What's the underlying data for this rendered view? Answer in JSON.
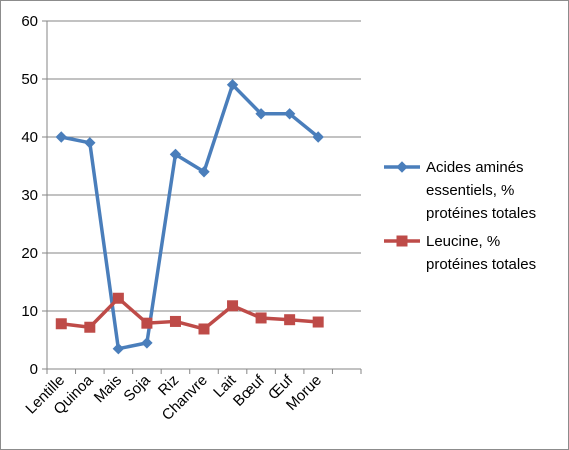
{
  "chart_data": {
    "type": "line",
    "title": "",
    "xlabel": "",
    "ylabel": "",
    "categories": [
      "Lentille",
      "Quinoa",
      "Mais",
      "Soja",
      "Riz",
      "Chanvre",
      "Lait",
      "Bœuf",
      "Œuf",
      "Morue"
    ],
    "ylim": [
      0,
      60
    ],
    "yticks": [
      0,
      10,
      20,
      30,
      40,
      50,
      60
    ],
    "grid": "horizontal",
    "legend_position": "right",
    "series": [
      {
        "name": "Acides aminés essentiels, % protéines totales",
        "legend_lines": [
          "Acides aminés",
          "essentiels, %",
          "protéines totales"
        ],
        "color": "#4a7ebb",
        "marker": "diamond",
        "values": [
          40,
          39,
          3.5,
          4.5,
          37,
          34,
          49,
          44,
          44,
          40
        ]
      },
      {
        "name": "Leucine, % protéines totales",
        "legend_lines": [
          "Leucine, %",
          "protéines totales"
        ],
        "color": "#be4b48",
        "marker": "square",
        "values": [
          7.8,
          7.2,
          12.2,
          7.9,
          8.2,
          6.9,
          10.9,
          8.8,
          8.5,
          8.1
        ]
      }
    ]
  }
}
